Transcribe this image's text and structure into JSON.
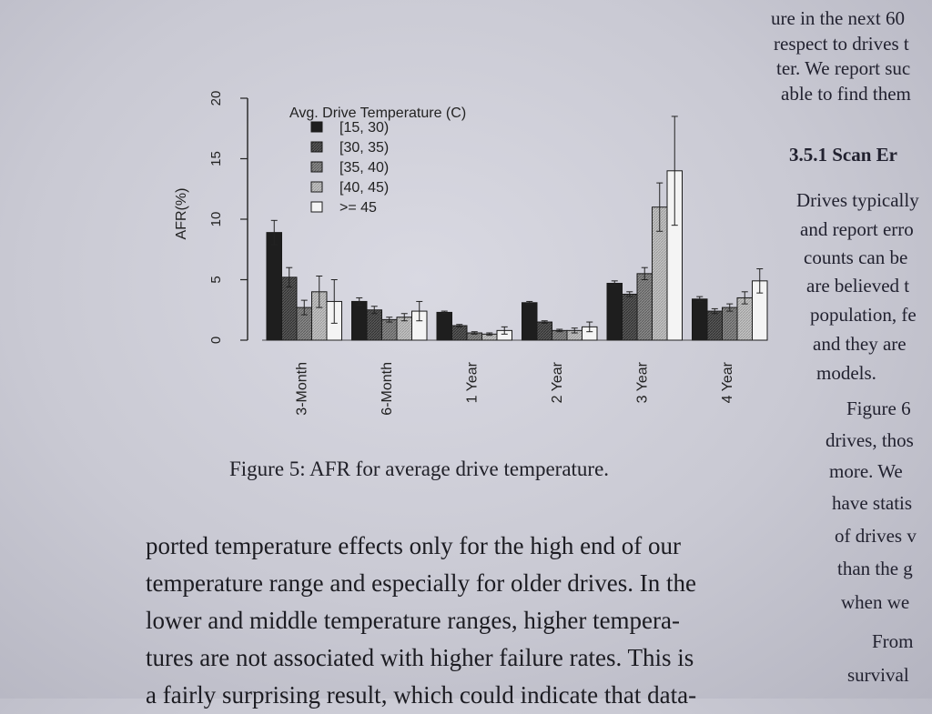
{
  "chart_data": {
    "type": "bar",
    "legend_title": "Avg. Drive Temperature (C)",
    "legend_position": "top-left",
    "ylabel": "AFR(%)",
    "xlabel": "",
    "ylim": [
      0,
      20
    ],
    "yticks": [
      "0",
      "5",
      "10",
      "15",
      "20"
    ],
    "categories": [
      "3-Month",
      "6-Month",
      "1 Year",
      "2 Year",
      "3 Year",
      "4 Year"
    ],
    "series": [
      {
        "name": "[15, 30)",
        "color": "#1e1e1e",
        "pattern": "solid-dark",
        "values": [
          8.9,
          3.2,
          2.3,
          3.1,
          4.7,
          3.4
        ],
        "err": [
          1.0,
          0.3,
          0.1,
          0.1,
          0.2,
          0.2
        ]
      },
      {
        "name": "[30, 35)",
        "color": "#4a4a4a",
        "pattern": "hatch-dense",
        "values": [
          5.2,
          2.5,
          1.2,
          1.5,
          3.8,
          2.4
        ],
        "err": [
          0.8,
          0.3,
          0.1,
          0.1,
          0.2,
          0.2
        ]
      },
      {
        "name": "[35, 40)",
        "color": "#7a7a7a",
        "pattern": "hatch-medium",
        "values": [
          2.7,
          1.7,
          0.6,
          0.8,
          5.5,
          2.7
        ],
        "err": [
          0.6,
          0.2,
          0.1,
          0.1,
          0.5,
          0.3
        ]
      },
      {
        "name": "[40, 45)",
        "color": "#b8b8b8",
        "pattern": "hatch-light",
        "values": [
          4.0,
          1.9,
          0.5,
          0.8,
          11.0,
          3.5
        ],
        "err": [
          1.3,
          0.3,
          0.1,
          0.2,
          2.0,
          0.5
        ]
      },
      {
        "name": ">= 45",
        "color": "#f4f4f4",
        "pattern": "none",
        "values": [
          3.2,
          2.4,
          0.8,
          1.1,
          14.0,
          4.9
        ],
        "err": [
          1.8,
          0.8,
          0.3,
          0.4,
          4.5,
          1.0
        ]
      }
    ],
    "grid": false
  },
  "figure": {
    "caption": "Figure 5: AFR for average drive temperature."
  },
  "body_text": {
    "lines": [
      "ported temperature effects only for the high end of our",
      "temperature range and especially for older drives. In the",
      "lower and middle temperature ranges, higher tempera-",
      "tures are not associated with higher failure rates. This is",
      "a fairly surprising result, which could indicate that data-"
    ]
  },
  "right_column": {
    "lines": [
      "ure in the next 60",
      "respect to drives t",
      "ter. We report suc",
      "able to find them",
      "3.5.1   Scan Er",
      "Drives typically",
      "and report erro",
      "counts can be",
      "are believed t",
      "population, fe",
      "and they are",
      "models.",
      "Figure 6",
      "drives, thos",
      "more. We",
      "have statis",
      "of drives v",
      "than the g",
      "when we",
      "From",
      "survival"
    ]
  }
}
